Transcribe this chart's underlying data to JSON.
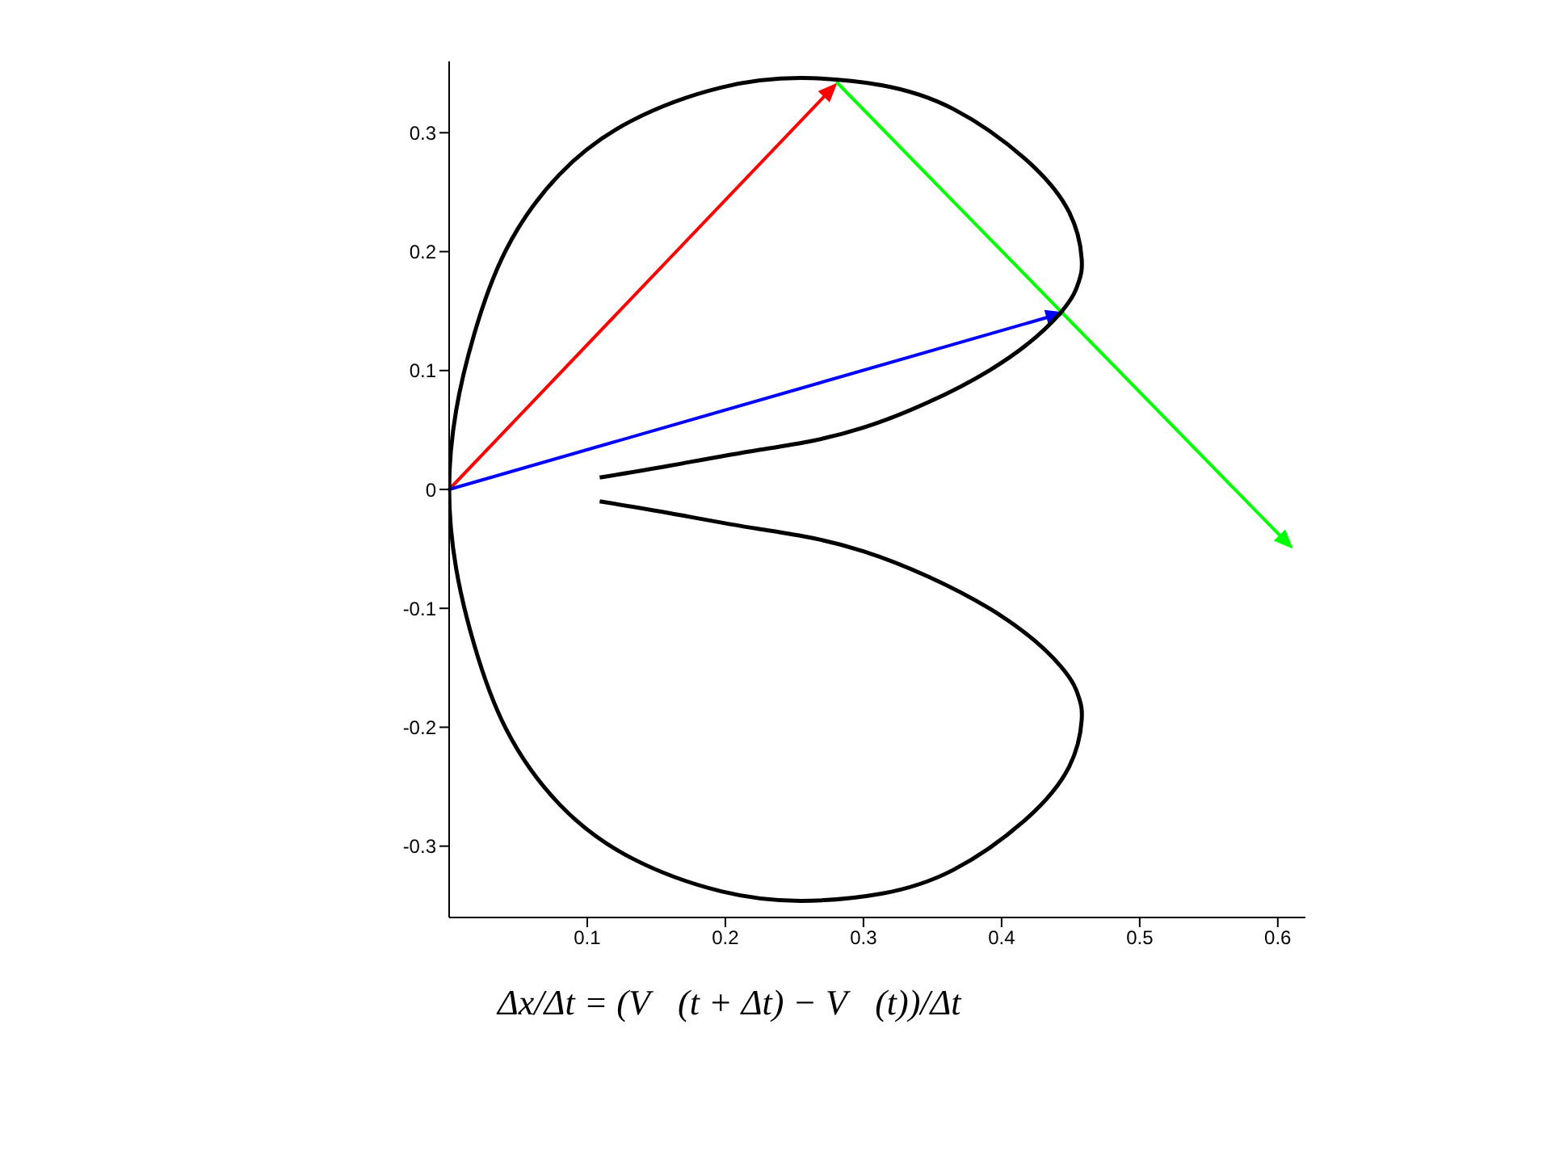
{
  "chart_data": {
    "type": "line",
    "xlim": [
      0,
      0.62
    ],
    "ylim": [
      -0.36,
      0.36
    ],
    "xticks": [
      0.1,
      0.2,
      0.3,
      0.4,
      0.5,
      0.6
    ],
    "yticks": [
      -0.3,
      -0.2,
      -0.1,
      0,
      0.1,
      0.2,
      0.3
    ],
    "grid": false,
    "marker": "none",
    "line_style": "solid",
    "series": [
      {
        "color": "#000000",
        "x": [
          0.109,
          0.16,
          0.223,
          0.3,
          0.391,
          0.443,
          0.456,
          0.458,
          0.449,
          0.417,
          0.365,
          0.313,
          0.255,
          0.197,
          0.132,
          0.08,
          0.041,
          0.018,
          0.005,
          0,
          0.005,
          0.018,
          0.041,
          0.08,
          0.132,
          0.197,
          0.255,
          0.313,
          0.365,
          0.417,
          0.449,
          0.458,
          0.456,
          0.443,
          0.391,
          0.3,
          0.223,
          0.16,
          0.109
        ],
        "values": [
          0.01,
          0.02,
          0.033,
          0.052,
          0.1,
          0.149,
          0.175,
          0.194,
          0.233,
          0.278,
          0.32,
          0.34,
          0.346,
          0.338,
          0.31,
          0.265,
          0.201,
          0.13,
          0.066,
          0,
          -0.066,
          -0.13,
          -0.201,
          -0.265,
          -0.31,
          -0.338,
          -0.346,
          -0.34,
          -0.32,
          -0.278,
          -0.233,
          -0.194,
          -0.175,
          -0.149,
          -0.1,
          -0.052,
          -0.033,
          -0.02,
          -0.01
        ]
      }
    ],
    "annotations": [
      "Δx/Δt = (V⃗(t + Δt) − V⃗(t))/Δt"
    ]
  }
}
